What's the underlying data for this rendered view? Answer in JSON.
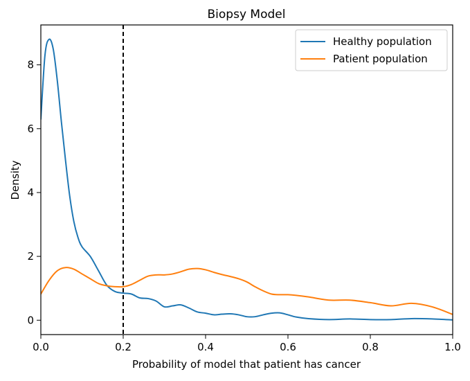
{
  "chart_data": {
    "type": "line",
    "title": "Biopsy Model",
    "xlabel": "Probability of model that patient has cancer",
    "ylabel": "Density",
    "xlim": [
      0.0,
      1.0
    ],
    "ylim": [
      -0.45,
      9.25
    ],
    "xticks": [
      0.0,
      0.2,
      0.4,
      0.6,
      0.8,
      1.0
    ],
    "xtick_labels": [
      "0.0",
      "0.2",
      "0.4",
      "0.6",
      "0.8",
      "1.0"
    ],
    "yticks": [
      0,
      2,
      4,
      6,
      8
    ],
    "ytick_labels": [
      "0",
      "2",
      "4",
      "6",
      "8"
    ],
    "grid": false,
    "legend_position": "top-right",
    "threshold_line": {
      "x": 0.2,
      "style": "dashed",
      "color": "#000000"
    },
    "series": [
      {
        "name": "Healthy population",
        "color": "#1f77b4",
        "x": [
          0.0,
          0.01,
          0.02,
          0.03,
          0.04,
          0.05,
          0.06,
          0.07,
          0.08,
          0.09,
          0.1,
          0.12,
          0.14,
          0.16,
          0.18,
          0.2,
          0.22,
          0.24,
          0.26,
          0.28,
          0.3,
          0.32,
          0.34,
          0.36,
          0.38,
          0.4,
          0.42,
          0.44,
          0.46,
          0.48,
          0.5,
          0.52,
          0.54,
          0.56,
          0.58,
          0.6,
          0.62,
          0.65,
          0.7,
          0.75,
          0.8,
          0.85,
          0.9,
          0.95,
          1.0
        ],
        "values": [
          6.3,
          8.3,
          8.8,
          8.5,
          7.5,
          6.2,
          5.0,
          3.9,
          3.1,
          2.6,
          2.3,
          2.0,
          1.55,
          1.1,
          0.9,
          0.85,
          0.82,
          0.7,
          0.68,
          0.6,
          0.42,
          0.45,
          0.48,
          0.38,
          0.26,
          0.22,
          0.17,
          0.19,
          0.2,
          0.17,
          0.11,
          0.11,
          0.17,
          0.22,
          0.23,
          0.17,
          0.1,
          0.05,
          0.02,
          0.04,
          0.02,
          0.02,
          0.05,
          0.04,
          0.01
        ]
      },
      {
        "name": "Patient population",
        "color": "#ff7f0e",
        "x": [
          0.0,
          0.02,
          0.04,
          0.06,
          0.08,
          0.1,
          0.12,
          0.14,
          0.16,
          0.18,
          0.2,
          0.22,
          0.24,
          0.26,
          0.28,
          0.3,
          0.32,
          0.34,
          0.36,
          0.38,
          0.4,
          0.42,
          0.44,
          0.46,
          0.48,
          0.5,
          0.52,
          0.54,
          0.56,
          0.58,
          0.6,
          0.62,
          0.65,
          0.7,
          0.75,
          0.8,
          0.85,
          0.9,
          0.95,
          1.0
        ],
        "values": [
          0.82,
          1.25,
          1.55,
          1.65,
          1.6,
          1.45,
          1.3,
          1.15,
          1.08,
          1.05,
          1.05,
          1.12,
          1.25,
          1.38,
          1.42,
          1.42,
          1.45,
          1.52,
          1.6,
          1.62,
          1.58,
          1.5,
          1.43,
          1.37,
          1.3,
          1.2,
          1.05,
          0.92,
          0.82,
          0.8,
          0.8,
          0.78,
          0.73,
          0.63,
          0.63,
          0.55,
          0.45,
          0.53,
          0.42,
          0.18
        ]
      }
    ]
  }
}
